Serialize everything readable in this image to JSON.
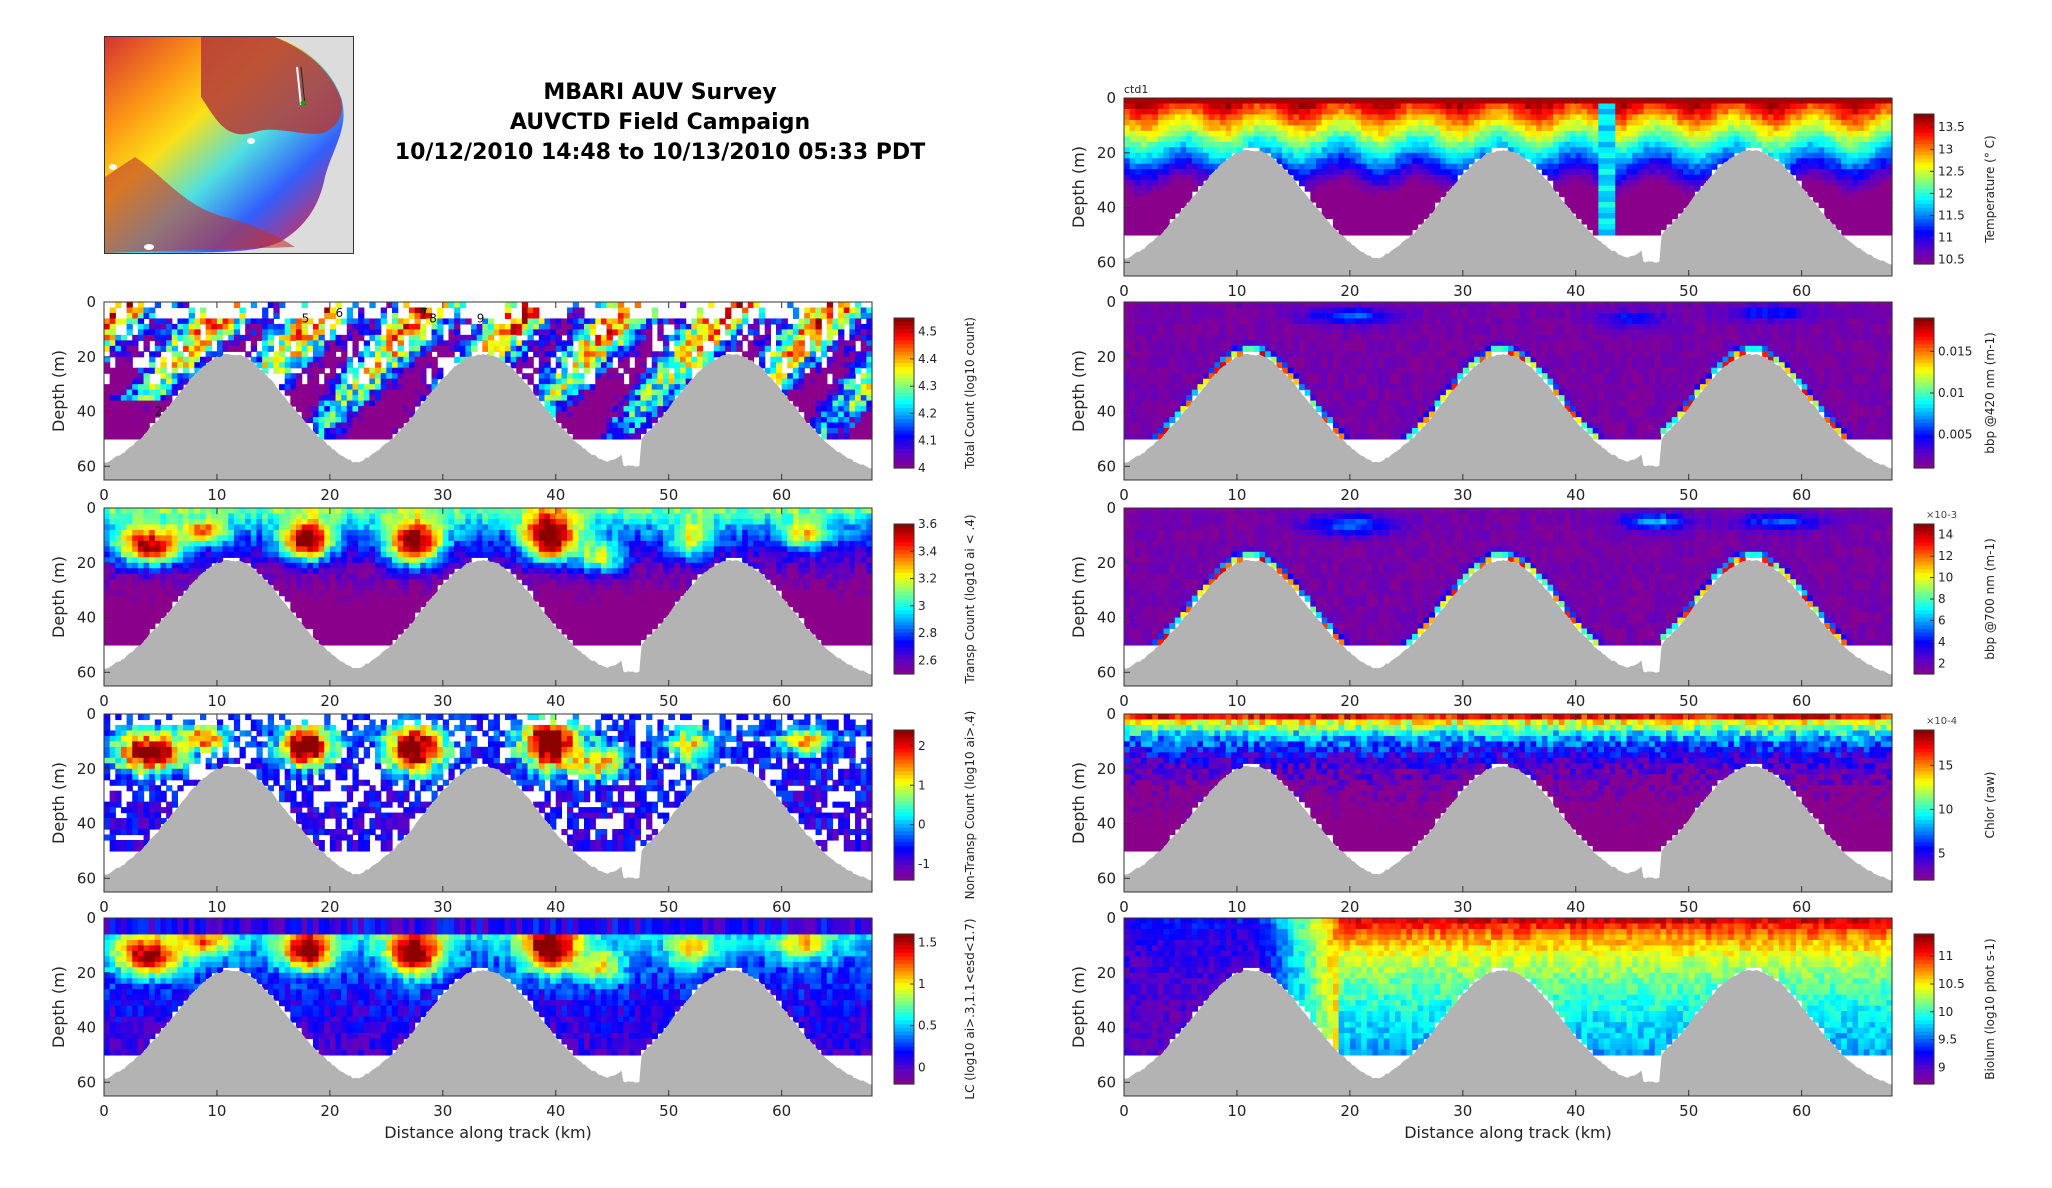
{
  "title_lines": [
    "MBARI AUV Survey",
    "AUVCTD Field Campaign",
    "10/12/2010 14:48 to 10/13/2010 05:33 PDT"
  ],
  "colors": {
    "seafloor": "#b3b3b3",
    "colormap_jet": [
      "#8b008b",
      "#5a00c8",
      "#0000ff",
      "#0080ff",
      "#00ffff",
      "#80ff80",
      "#ffff00",
      "#ff8000",
      "#ff0000",
      "#8b0000"
    ]
  },
  "chart_data": [
    {
      "id": "total-count",
      "type": "heatmap",
      "title": "",
      "xlabel": "",
      "ylabel": "Depth (m)",
      "xlim": [
        0,
        68
      ],
      "ylim": [
        0,
        65
      ],
      "x_ticks": [
        "0",
        "10",
        "20",
        "30",
        "40",
        "50",
        "60"
      ],
      "y_ticks": [
        "0",
        "20",
        "40",
        "60"
      ],
      "colorbar_label": "Total Count (log10 count)",
      "colorbar_ticks": [
        "4.5",
        "4.4",
        "4.3",
        "4.2",
        "4.1",
        "4"
      ],
      "colorbar_range": [
        4.0,
        4.55
      ],
      "annotations": [
        "5",
        "6",
        "7",
        "8",
        "9",
        "2"
      ]
    },
    {
      "id": "transp-count",
      "type": "heatmap",
      "title": "",
      "xlabel": "",
      "ylabel": "Depth (m)",
      "xlim": [
        0,
        68
      ],
      "ylim": [
        0,
        65
      ],
      "x_ticks": [
        "0",
        "10",
        "20",
        "30",
        "40",
        "50",
        "60"
      ],
      "y_ticks": [
        "0",
        "20",
        "40",
        "60"
      ],
      "colorbar_label": "Transp Count (log10 ai < .4)",
      "colorbar_ticks": [
        "3.6",
        "3.4",
        "3.2",
        "3",
        "2.8",
        "2.6"
      ],
      "colorbar_range": [
        2.5,
        3.6
      ],
      "annotations": []
    },
    {
      "id": "non-transp-count",
      "type": "heatmap",
      "title": "",
      "xlabel": "",
      "ylabel": "Depth (m)",
      "xlim": [
        0,
        68
      ],
      "ylim": [
        0,
        65
      ],
      "x_ticks": [
        "0",
        "10",
        "20",
        "30",
        "40",
        "50",
        "60"
      ],
      "y_ticks": [
        "0",
        "20",
        "40",
        "60"
      ],
      "colorbar_label": "Non-Transp Count (log10 ai>.4)",
      "colorbar_ticks": [
        "2",
        "1",
        "0",
        "-1"
      ],
      "colorbar_range": [
        -1.4,
        2.4
      ],
      "annotations": []
    },
    {
      "id": "lc",
      "type": "heatmap",
      "title": "",
      "xlabel": "Distance along track (km)",
      "ylabel": "Depth (m)",
      "xlim": [
        0,
        68
      ],
      "ylim": [
        0,
        65
      ],
      "x_ticks": [
        "0",
        "10",
        "20",
        "30",
        "40",
        "50",
        "60"
      ],
      "y_ticks": [
        "0",
        "20",
        "40",
        "60"
      ],
      "colorbar_label": "LC (log10 ai>.3,1.1<esd<1.7)",
      "colorbar_ticks": [
        "1.5",
        "1",
        "0.5",
        "0"
      ],
      "colorbar_range": [
        -0.2,
        1.6
      ],
      "annotations": []
    },
    {
      "id": "temperature",
      "type": "heatmap",
      "title": "ctd1",
      "xlabel": "",
      "ylabel": "Depth (m)",
      "xlim": [
        0,
        68
      ],
      "ylim": [
        0,
        65
      ],
      "x_ticks": [
        "0",
        "10",
        "20",
        "30",
        "40",
        "50",
        "60"
      ],
      "y_ticks": [
        "0",
        "20",
        "40",
        "60"
      ],
      "colorbar_label": "Temperature (° C)",
      "colorbar_ticks": [
        "13.5",
        "13",
        "12.5",
        "12",
        "11.5",
        "11",
        "10.5"
      ],
      "colorbar_range": [
        10.4,
        13.8
      ],
      "annotations": []
    },
    {
      "id": "bbp420",
      "type": "heatmap",
      "title": "",
      "xlabel": "",
      "ylabel": "Depth (m)",
      "xlim": [
        0,
        68
      ],
      "ylim": [
        0,
        65
      ],
      "x_ticks": [
        "0",
        "10",
        "20",
        "30",
        "40",
        "50",
        "60"
      ],
      "y_ticks": [
        "0",
        "20",
        "40",
        "60"
      ],
      "colorbar_label": "bbp @420 nm (m-1)",
      "colorbar_ticks": [
        "0.015",
        "0.01",
        "0.005"
      ],
      "colorbar_range": [
        0.001,
        0.019
      ],
      "annotations": []
    },
    {
      "id": "bbp700",
      "type": "heatmap",
      "title": "",
      "xlabel": "",
      "ylabel": "Depth (m)",
      "xlim": [
        0,
        68
      ],
      "ylim": [
        0,
        65
      ],
      "x_ticks": [
        "0",
        "10",
        "20",
        "30",
        "40",
        "50",
        "60"
      ],
      "y_ticks": [
        "0",
        "20",
        "40",
        "60"
      ],
      "colorbar_label": "bbp @700 nm (m-1)",
      "colorbar_ticks": [
        "14",
        "12",
        "10",
        "8",
        "6",
        "4",
        "2"
      ],
      "colorbar_exponent": "×10-3",
      "colorbar_range": [
        1,
        15
      ],
      "annotations": []
    },
    {
      "id": "chlor",
      "type": "heatmap",
      "title": "",
      "xlabel": "",
      "ylabel": "Depth (m)",
      "xlim": [
        0,
        68
      ],
      "ylim": [
        0,
        65
      ],
      "x_ticks": [
        "0",
        "10",
        "20",
        "30",
        "40",
        "50",
        "60"
      ],
      "y_ticks": [
        "0",
        "20",
        "40",
        "60"
      ],
      "colorbar_label": "Chlor (raw)",
      "colorbar_ticks": [
        "15",
        "10",
        "5"
      ],
      "colorbar_exponent": "×10-4",
      "colorbar_range": [
        2,
        19
      ],
      "annotations": []
    },
    {
      "id": "biolum",
      "type": "heatmap",
      "title": "",
      "xlabel": "Distance along track (km)",
      "ylabel": "Depth (m)",
      "xlim": [
        0,
        68
      ],
      "ylim": [
        0,
        65
      ],
      "x_ticks": [
        "0",
        "10",
        "20",
        "30",
        "40",
        "50",
        "60"
      ],
      "y_ticks": [
        "0",
        "20",
        "40",
        "60"
      ],
      "colorbar_label": "Biolum (log10 phot s-1)",
      "colorbar_ticks": [
        "11",
        "10.5",
        "10",
        "9.5",
        "9"
      ],
      "colorbar_range": [
        8.7,
        11.4
      ],
      "annotations": []
    }
  ]
}
